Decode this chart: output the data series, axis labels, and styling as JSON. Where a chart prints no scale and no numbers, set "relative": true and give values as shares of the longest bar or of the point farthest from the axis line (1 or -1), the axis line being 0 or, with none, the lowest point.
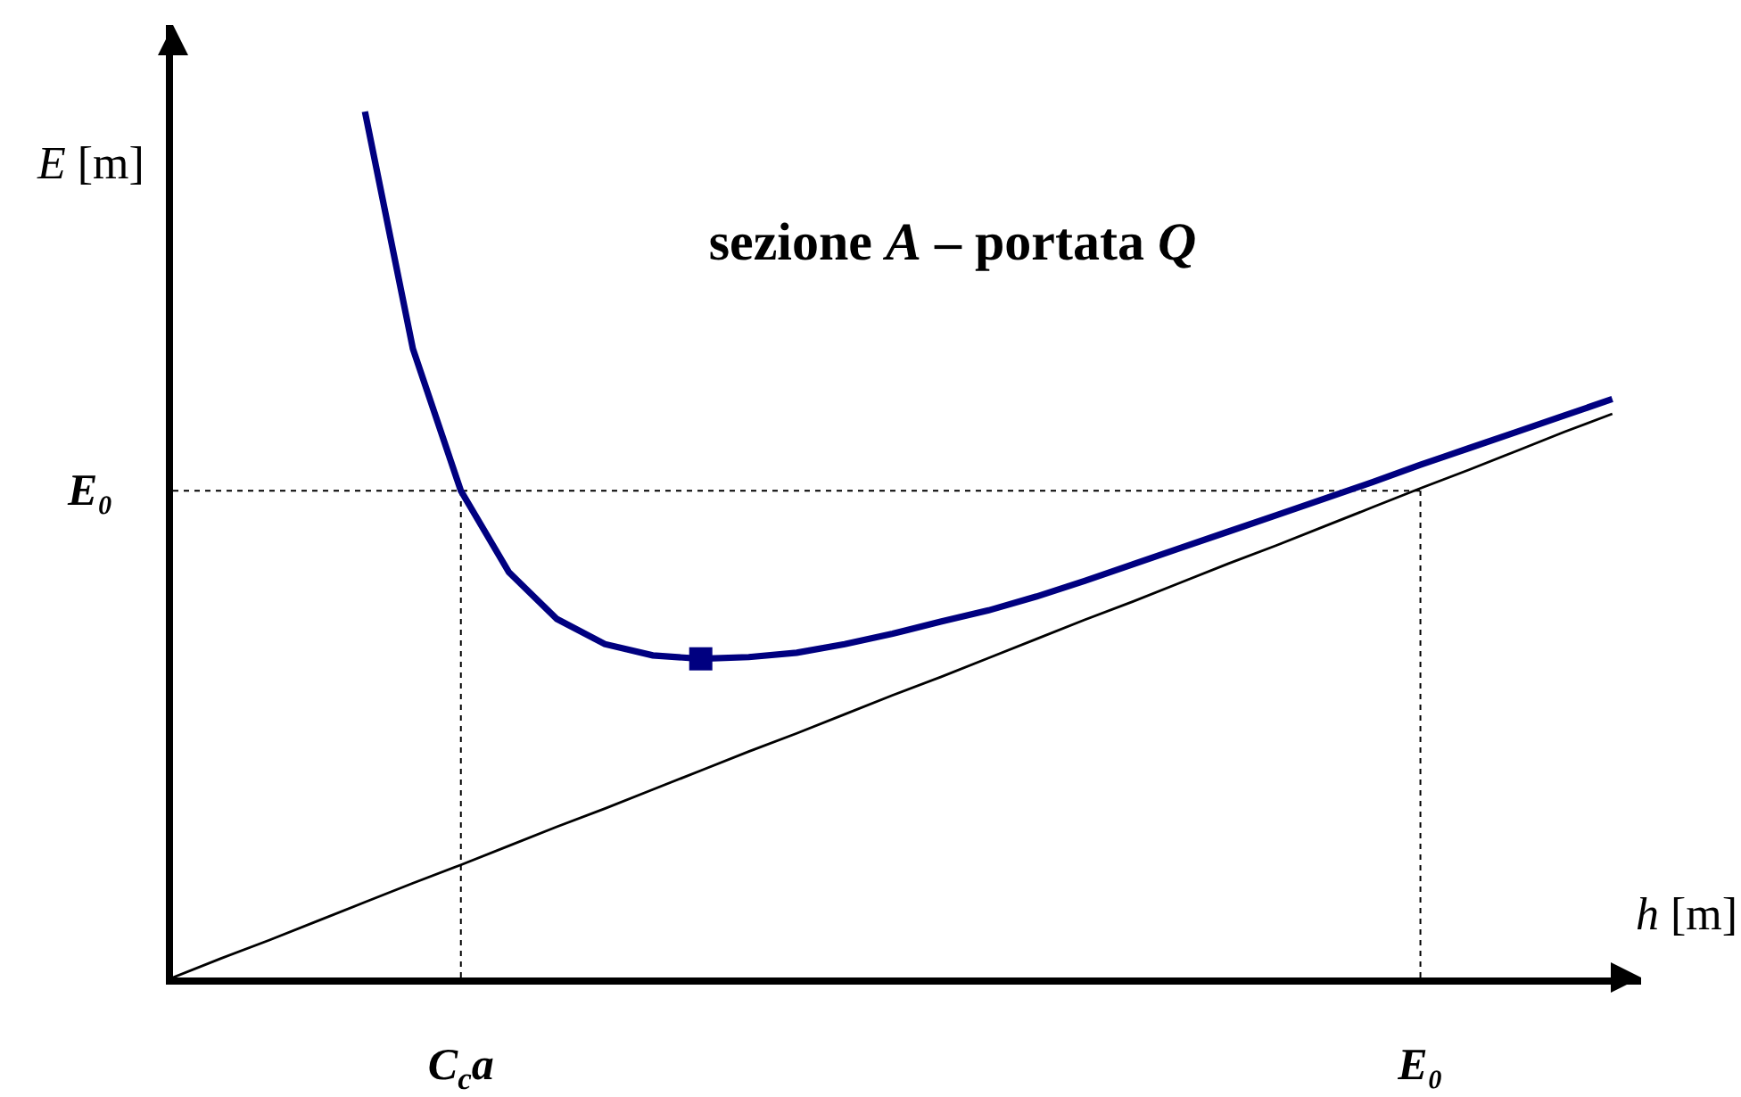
{
  "chart_data": {
    "type": "line",
    "relative": true,
    "title": "sezione A – portata Q",
    "xlabel": "h [m]",
    "ylabel": "E [m]",
    "tick_labels": "x",
    "categories": [
      null,
      null,
      null,
      null,
      null,
      null,
      "C$_{c}$a",
      null,
      null,
      null,
      null,
      null,
      null,
      null,
      null,
      null,
      null,
      null,
      null,
      null,
      null,
      null,
      null,
      null,
      null,
      null,
      "E₀",
      null,
      null,
      null,
      null
    ],
    "ref_lines": [
      {
        "axis": "y",
        "value": 0.562,
        "label": "E₀",
        "color": "#000000",
        "line_style": "dotted"
      },
      {
        "axis": "x",
        "value": "C$_{c}$a",
        "color": "#000000",
        "line_style": "dotted"
      },
      {
        "axis": "x",
        "value": "E₀",
        "color": "#000000",
        "line_style": "dotted"
      }
    ],
    "series": [
      {
        "color": "#000080",
        "values": [
          null,
          null,
          null,
          null,
          1.0,
          0.726,
          0.562,
          0.468,
          0.414,
          0.385,
          0.372,
          0.368,
          0.37,
          0.375,
          0.385,
          0.397,
          0.411,
          0.424,
          0.44,
          0.458,
          0.477,
          0.496,
          0.515,
          0.534,
          0.553,
          0.572,
          0.592,
          0.611,
          0.63,
          0.649,
          0.668
        ]
      },
      {
        "color": "#000000",
        "values": [
          0,
          0.022,
          0.043,
          0.065,
          0.087,
          0.109,
          0.13,
          0.152,
          0.174,
          0.195,
          0.217,
          0.239,
          0.261,
          0.282,
          0.304,
          0.326,
          0.347,
          0.369,
          0.391,
          0.413,
          0.434,
          0.456,
          0.478,
          0.499,
          0.521,
          0.543,
          0.565,
          0.586,
          0.608,
          0.63,
          0.651
        ]
      },
      {
        "type": "scatter",
        "color": "#000080",
        "marker": "square",
        "values": [
          null,
          null,
          null,
          null,
          null,
          null,
          null,
          null,
          null,
          null,
          null,
          0.368,
          null,
          null,
          null,
          null,
          null,
          null,
          null,
          null,
          null,
          null,
          null,
          null,
          null,
          null,
          null,
          null,
          null,
          null,
          null
        ]
      }
    ]
  }
}
